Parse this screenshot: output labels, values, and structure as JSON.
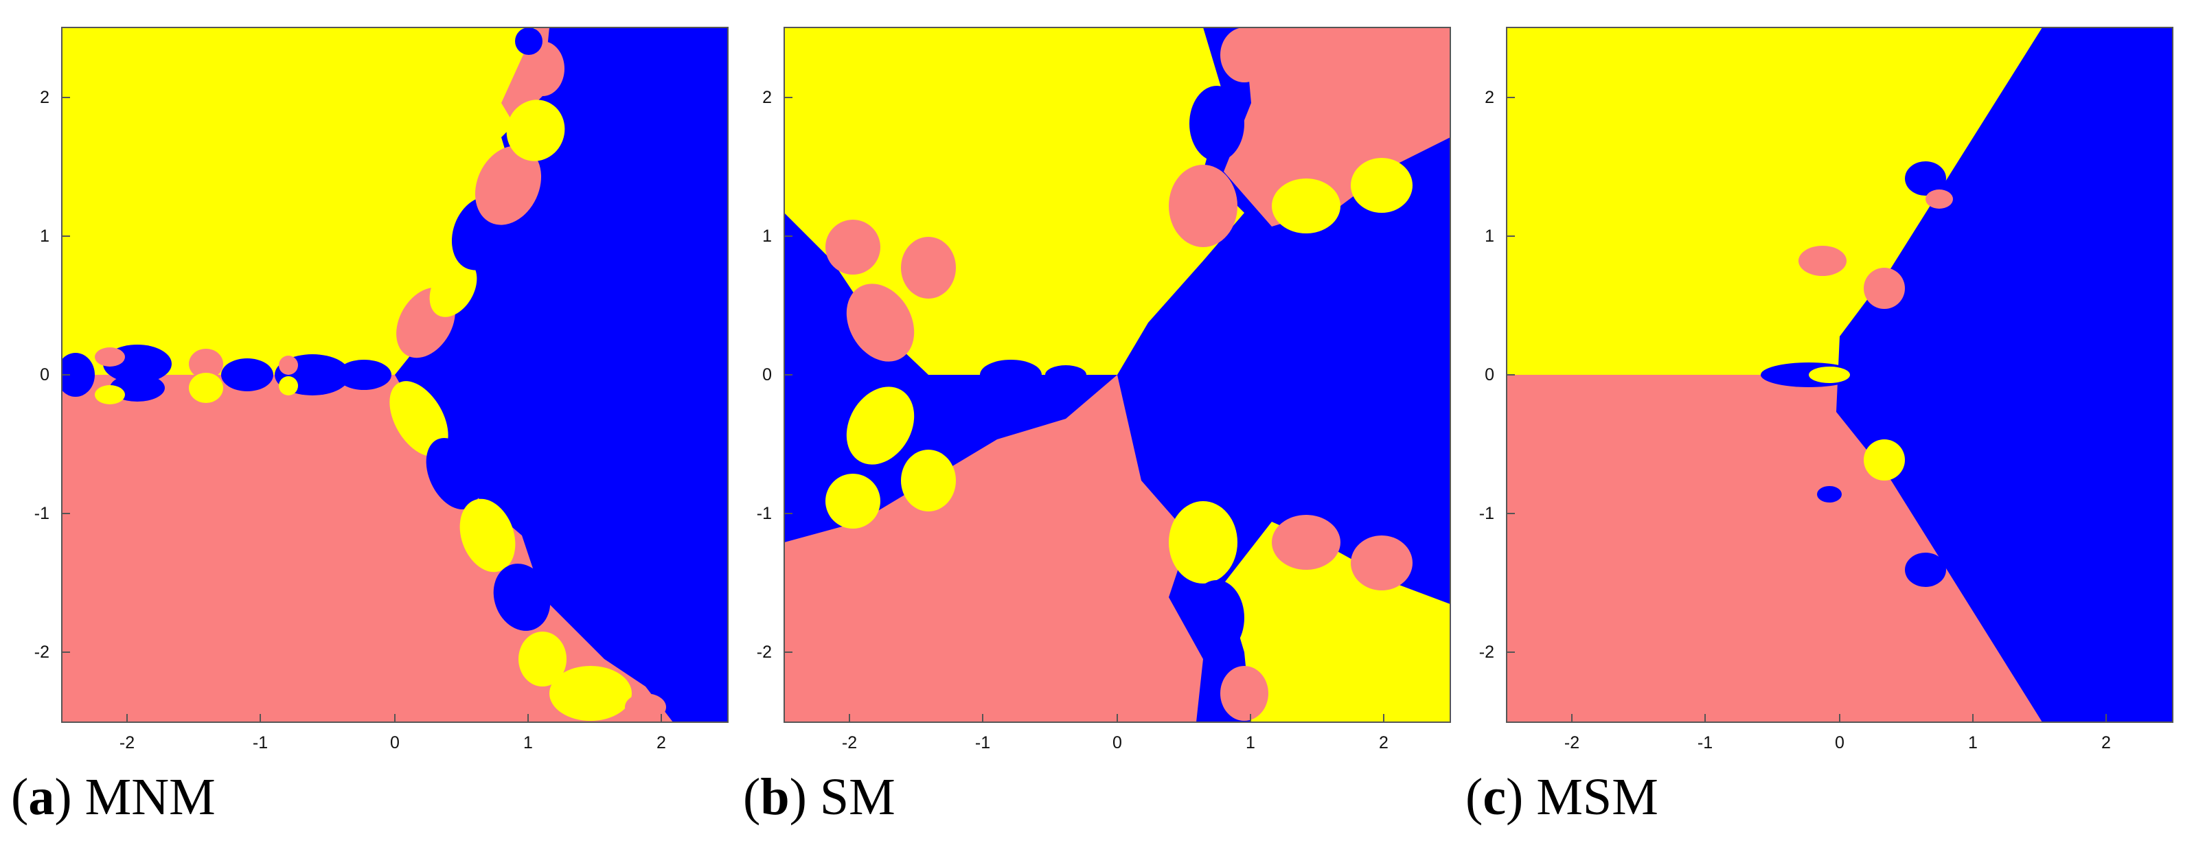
{
  "colors": {
    "yellow": "#ffff00",
    "pink": "#fa8080",
    "blue": "#0000ff",
    "frame": "#555555"
  },
  "x_ticks": [
    "-2",
    "-1",
    "0",
    "1",
    "2"
  ],
  "y_ticks": [
    "2",
    "1",
    "0",
    "-1",
    "-2"
  ],
  "panels": [
    {
      "letter": "a",
      "name": "MNM"
    },
    {
      "letter": "b",
      "name": "SM"
    },
    {
      "letter": "c",
      "name": "MSM"
    }
  ]
}
